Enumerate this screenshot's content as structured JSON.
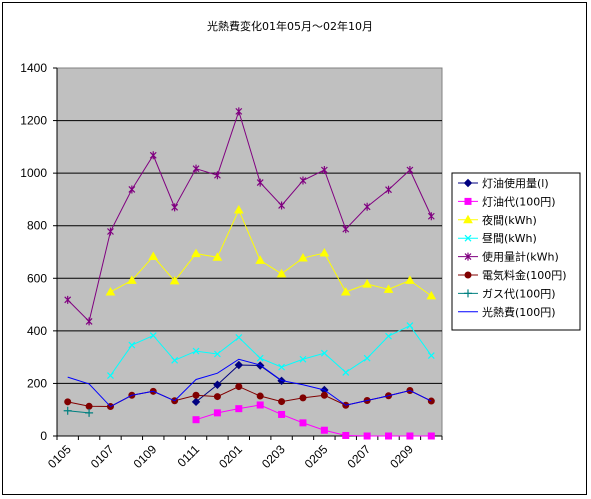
{
  "chart_data": {
    "type": "line",
    "title": "光熱費変化01年05月～02年10月",
    "categories": [
      "0105",
      "0106",
      "0107",
      "0108",
      "0109",
      "0110",
      "0111",
      "0112",
      "0201",
      "0202",
      "0203",
      "0204",
      "0205",
      "0206",
      "0207",
      "0208",
      "0209",
      "0210"
    ],
    "x_tick_labels": [
      "0105",
      "0107",
      "0109",
      "0111",
      "0201",
      "0203",
      "0205",
      "0207",
      "0209"
    ],
    "ylim": [
      0,
      1400
    ],
    "y_ticks": [
      0,
      200,
      400,
      600,
      800,
      1000,
      1200,
      1400
    ],
    "grid": true,
    "plot_background": "#c0c0c0",
    "legend_position": "right",
    "series": [
      {
        "name": "灯油使用量(l)",
        "color": "#000080",
        "marker": "diamond",
        "values": [
          null,
          null,
          null,
          null,
          null,
          null,
          130,
          195,
          270,
          268,
          210,
          null,
          175,
          null,
          null,
          null,
          null,
          null
        ]
      },
      {
        "name": "灯油代(100円)",
        "color": "#ff00ff",
        "marker": "square",
        "values": [
          null,
          null,
          null,
          null,
          null,
          null,
          62,
          88,
          104,
          118,
          82,
          50,
          22,
          2,
          0,
          0,
          0,
          0
        ]
      },
      {
        "name": "夜間(kWh)",
        "color": "#ffff00",
        "marker": "triangle",
        "values": [
          null,
          null,
          548,
          592,
          683,
          590,
          694,
          680,
          860,
          668,
          617,
          677,
          696,
          548,
          578,
          558,
          592,
          533
        ]
      },
      {
        "name": "昼間(kWh)",
        "color": "#00ffff",
        "marker": "x",
        "values": [
          null,
          null,
          230,
          346,
          382,
          288,
          323,
          312,
          375,
          296,
          262,
          292,
          315,
          242,
          296,
          380,
          420,
          306
        ]
      },
      {
        "name": "使用量計(kWh)",
        "color": "#800080",
        "marker": "star",
        "values": [
          518,
          436,
          778,
          938,
          1068,
          870,
          1017,
          992,
          1235,
          964,
          877,
          972,
          1012,
          787,
          872,
          937,
          1012,
          836
        ]
      },
      {
        "name": "電気料金(100円)",
        "color": "#800000",
        "marker": "circle",
        "values": [
          130,
          113,
          112,
          155,
          170,
          134,
          155,
          150,
          188,
          152,
          131,
          145,
          155,
          117,
          135,
          153,
          173,
          133
        ]
      },
      {
        "name": "ガス代(100円)",
        "color": "#008080",
        "marker": "plus",
        "values": [
          96,
          88,
          null,
          null,
          null,
          null,
          null,
          null,
          null,
          null,
          null,
          null,
          null,
          null,
          null,
          null,
          null,
          null
        ]
      },
      {
        "name": "光熱費(100円)",
        "color": "#0000ff",
        "marker": "none",
        "values": [
          224,
          198,
          112,
          155,
          170,
          134,
          215,
          239,
          292,
          270,
          211,
          195,
          175,
          117,
          135,
          153,
          173,
          133
        ]
      }
    ]
  }
}
